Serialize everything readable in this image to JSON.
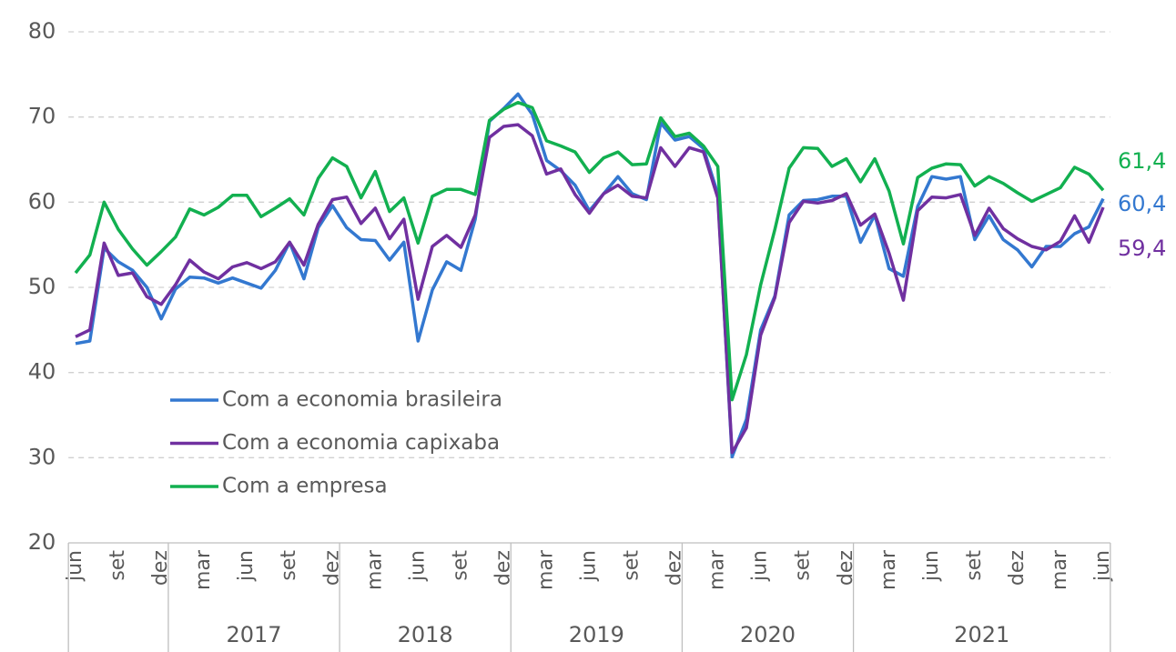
{
  "chart_data": {
    "type": "line",
    "categories": [
      "jun",
      null,
      null,
      "set",
      null,
      null,
      "dez",
      null,
      null,
      "mar",
      null,
      null,
      "jun",
      null,
      null,
      "set",
      null,
      null,
      "dez",
      null,
      null,
      "mar",
      null,
      null,
      "jun",
      null,
      null,
      "set",
      null,
      null,
      "dez",
      null,
      null,
      "mar",
      null,
      null,
      "jun",
      null,
      null,
      "set",
      null,
      null,
      "dez",
      null,
      null,
      "mar",
      null,
      null,
      "jun",
      null,
      null,
      "set",
      null,
      null,
      "dez",
      null,
      null,
      "mar",
      null,
      null,
      "jun",
      null,
      null,
      "set",
      null,
      null,
      "dez",
      null,
      null,
      "mar",
      null,
      null,
      "jun"
    ],
    "year_groups": [
      "2017",
      "2018",
      "2019",
      "2020",
      "2021"
    ],
    "series": [
      {
        "name": "Com a economia brasileira",
        "color": "#3378d0",
        "end_label": "60,4",
        "values": [
          43.4,
          43.7,
          54.6,
          53.0,
          52.0,
          50.0,
          46.3,
          49.8,
          51.2,
          51.1,
          50.5,
          51.1,
          50.5,
          49.9,
          52.0,
          55.3,
          51.0,
          57.0,
          59.6,
          57.0,
          55.6,
          55.5,
          53.2,
          55.3,
          43.7,
          49.7,
          53.0,
          52.0,
          58.0,
          69.5,
          71.0,
          72.7,
          70.3,
          64.9,
          63.7,
          62.0,
          59.0,
          61.0,
          63.0,
          61.0,
          60.3,
          69.3,
          67.3,
          67.7,
          66.3,
          61.0,
          30.1,
          34.5,
          45.0,
          49.0,
          58.5,
          60.2,
          60.3,
          60.7,
          60.7,
          55.3,
          58.5,
          52.2,
          51.3,
          59.5,
          63.0,
          62.7,
          63.0,
          55.6,
          58.4,
          55.6,
          54.4,
          52.4,
          54.8,
          54.8,
          56.3,
          57.1,
          60.4
        ]
      },
      {
        "name": "Com a economia capixaba",
        "color": "#7030a0",
        "end_label": "59,4",
        "values": [
          44.2,
          45.0,
          55.2,
          51.4,
          51.7,
          48.9,
          48.0,
          50.3,
          53.2,
          51.8,
          51.0,
          52.4,
          52.9,
          52.2,
          53.0,
          55.3,
          52.6,
          57.4,
          60.3,
          60.6,
          57.5,
          59.3,
          55.7,
          58.0,
          48.6,
          54.8,
          56.1,
          54.7,
          58.5,
          67.6,
          68.9,
          69.1,
          67.8,
          63.3,
          63.9,
          60.9,
          58.7,
          61.0,
          62.0,
          60.7,
          60.5,
          66.4,
          64.2,
          66.4,
          65.9,
          60.5,
          30.6,
          33.5,
          44.4,
          48.8,
          57.6,
          60.1,
          59.9,
          60.2,
          61.0,
          57.3,
          58.6,
          54.0,
          48.5,
          59.0,
          60.6,
          60.5,
          60.9,
          56.1,
          59.3,
          56.9,
          55.7,
          54.8,
          54.4,
          55.4,
          58.4,
          55.3,
          59.4
        ]
      },
      {
        "name": "Com a empresa",
        "color": "#12b050",
        "end_label": "61,4",
        "values": [
          51.7,
          53.8,
          60.0,
          56.8,
          54.5,
          52.6,
          54.2,
          55.9,
          59.2,
          58.5,
          59.4,
          60.8,
          60.8,
          58.3,
          59.3,
          60.4,
          58.5,
          62.8,
          65.2,
          64.2,
          60.5,
          63.6,
          58.9,
          60.5,
          55.2,
          60.7,
          61.5,
          61.5,
          60.9,
          69.6,
          70.9,
          71.7,
          71.1,
          67.2,
          66.6,
          65.9,
          63.5,
          65.2,
          65.9,
          64.4,
          64.5,
          69.9,
          67.7,
          68.1,
          66.6,
          64.2,
          36.8,
          42.1,
          50.3,
          56.8,
          64.0,
          66.4,
          66.3,
          64.2,
          65.1,
          62.4,
          65.1,
          61.3,
          55.1,
          62.9,
          64.0,
          64.5,
          64.4,
          61.9,
          63.0,
          62.2,
          61.1,
          60.1,
          60.9,
          61.7,
          64.1,
          63.3,
          61.4
        ]
      }
    ],
    "ylim": [
      20,
      80
    ],
    "yticks": [
      20,
      30,
      40,
      50,
      60,
      70,
      80
    ],
    "grid": true,
    "legend": "lower left"
  }
}
